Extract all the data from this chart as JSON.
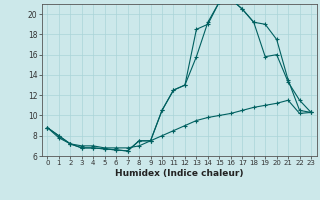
{
  "xlabel": "Humidex (Indice chaleur)",
  "background_color": "#cce8ea",
  "line_color": "#006060",
  "grid_color": "#aad4d8",
  "xlim": [
    -0.5,
    23.5
  ],
  "ylim": [
    6,
    21
  ],
  "xticks": [
    0,
    1,
    2,
    3,
    4,
    5,
    6,
    7,
    8,
    9,
    10,
    11,
    12,
    13,
    14,
    15,
    16,
    17,
    18,
    19,
    20,
    21,
    22,
    23
  ],
  "yticks": [
    6,
    8,
    10,
    12,
    14,
    16,
    18,
    20
  ],
  "curve1_x": [
    0,
    1,
    2,
    3,
    4,
    5,
    6,
    7,
    8,
    9,
    10,
    11,
    12,
    13,
    14,
    15,
    16,
    17,
    18,
    19,
    20,
    21,
    22,
    23
  ],
  "curve1_y": [
    8.8,
    8.0,
    7.2,
    6.8,
    6.8,
    6.7,
    6.6,
    6.5,
    7.5,
    7.5,
    10.5,
    12.5,
    13.0,
    15.8,
    19.2,
    21.2,
    21.5,
    20.5,
    19.2,
    19.0,
    17.5,
    13.5,
    10.5,
    10.3
  ],
  "curve2_x": [
    0,
    1,
    2,
    3,
    4,
    5,
    6,
    7,
    8,
    9,
    10,
    11,
    12,
    13,
    14,
    15,
    16,
    17,
    18,
    19,
    20,
    21,
    22,
    23
  ],
  "curve2_y": [
    8.8,
    8.0,
    7.2,
    6.8,
    6.8,
    6.7,
    6.6,
    6.5,
    7.5,
    7.5,
    10.5,
    12.5,
    13.0,
    18.5,
    19.0,
    21.2,
    21.5,
    20.5,
    19.2,
    15.8,
    16.0,
    13.3,
    11.5,
    10.3
  ],
  "curve3_x": [
    0,
    1,
    2,
    3,
    4,
    5,
    6,
    7,
    8,
    9,
    10,
    11,
    12,
    13,
    14,
    15,
    16,
    17,
    18,
    19,
    20,
    21,
    22,
    23
  ],
  "curve3_y": [
    8.8,
    7.8,
    7.2,
    7.0,
    7.0,
    6.8,
    6.8,
    6.8,
    7.0,
    7.5,
    8.0,
    8.5,
    9.0,
    9.5,
    9.8,
    10.0,
    10.2,
    10.5,
    10.8,
    11.0,
    11.2,
    11.5,
    10.2,
    10.3
  ]
}
